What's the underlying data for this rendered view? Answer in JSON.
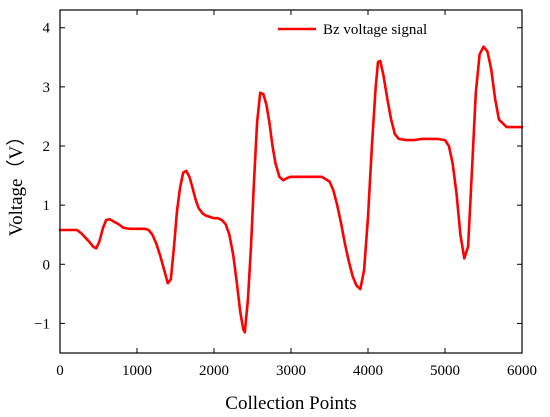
{
  "chart_data": {
    "type": "line",
    "title": "",
    "xlabel": "Collection Points",
    "ylabel": "Voltage（V）",
    "xlim": [
      0,
      6000
    ],
    "ylim": [
      -1.5,
      4.3
    ],
    "xticks": [
      "0",
      "1000",
      "2000",
      "3000",
      "4000",
      "5000",
      "6000"
    ],
    "yticks": [
      "−1",
      "0",
      "1",
      "2",
      "3",
      "4"
    ],
    "grid": false,
    "legend_position": "top-right",
    "series_color": "#ff0000",
    "series": [
      {
        "name": "Bz voltage signal",
        "x": [
          0,
          100,
          220,
          280,
          330,
          380,
          430,
          470,
          510,
          560,
          600,
          650,
          700,
          760,
          820,
          900,
          1000,
          1050,
          1100,
          1150,
          1200,
          1250,
          1300,
          1350,
          1400,
          1440,
          1480,
          1520,
          1560,
          1600,
          1640,
          1680,
          1720,
          1760,
          1800,
          1850,
          1900,
          1950,
          2000,
          2050,
          2100,
          2150,
          2200,
          2250,
          2300,
          2340,
          2380,
          2400,
          2440,
          2480,
          2520,
          2560,
          2600,
          2640,
          2680,
          2720,
          2760,
          2800,
          2850,
          2900,
          2950,
          3000,
          3100,
          3200,
          3300,
          3400,
          3500,
          3550,
          3600,
          3650,
          3700,
          3750,
          3800,
          3850,
          3900,
          3950,
          4000,
          4050,
          4100,
          4130,
          4160,
          4200,
          4250,
          4300,
          4350,
          4400,
          4500,
          4600,
          4700,
          4800,
          4900,
          5000,
          5050,
          5100,
          5150,
          5200,
          5250,
          5300,
          5350,
          5400,
          5450,
          5500,
          5550,
          5600,
          5650,
          5700,
          5800,
          5900,
          6000
        ],
        "y": [
          0.58,
          0.58,
          0.58,
          0.52,
          0.45,
          0.38,
          0.3,
          0.27,
          0.38,
          0.62,
          0.75,
          0.76,
          0.72,
          0.68,
          0.62,
          0.6,
          0.6,
          0.6,
          0.6,
          0.58,
          0.5,
          0.35,
          0.15,
          -0.08,
          -0.32,
          -0.25,
          0.3,
          0.9,
          1.3,
          1.55,
          1.58,
          1.48,
          1.3,
          1.1,
          0.95,
          0.86,
          0.82,
          0.8,
          0.78,
          0.78,
          0.75,
          0.68,
          0.5,
          0.15,
          -0.35,
          -0.8,
          -1.1,
          -1.15,
          -0.6,
          0.3,
          1.4,
          2.4,
          2.9,
          2.88,
          2.7,
          2.4,
          2.0,
          1.7,
          1.48,
          1.42,
          1.46,
          1.48,
          1.48,
          1.48,
          1.48,
          1.48,
          1.4,
          1.25,
          1.0,
          0.7,
          0.35,
          0.05,
          -0.2,
          -0.36,
          -0.42,
          -0.1,
          0.8,
          2.0,
          3.0,
          3.42,
          3.44,
          3.2,
          2.8,
          2.45,
          2.2,
          2.12,
          2.1,
          2.1,
          2.12,
          2.12,
          2.12,
          2.1,
          2.0,
          1.7,
          1.2,
          0.5,
          0.1,
          0.3,
          1.6,
          2.9,
          3.55,
          3.68,
          3.6,
          3.3,
          2.8,
          2.45,
          2.32,
          2.32,
          2.32
        ]
      }
    ]
  }
}
